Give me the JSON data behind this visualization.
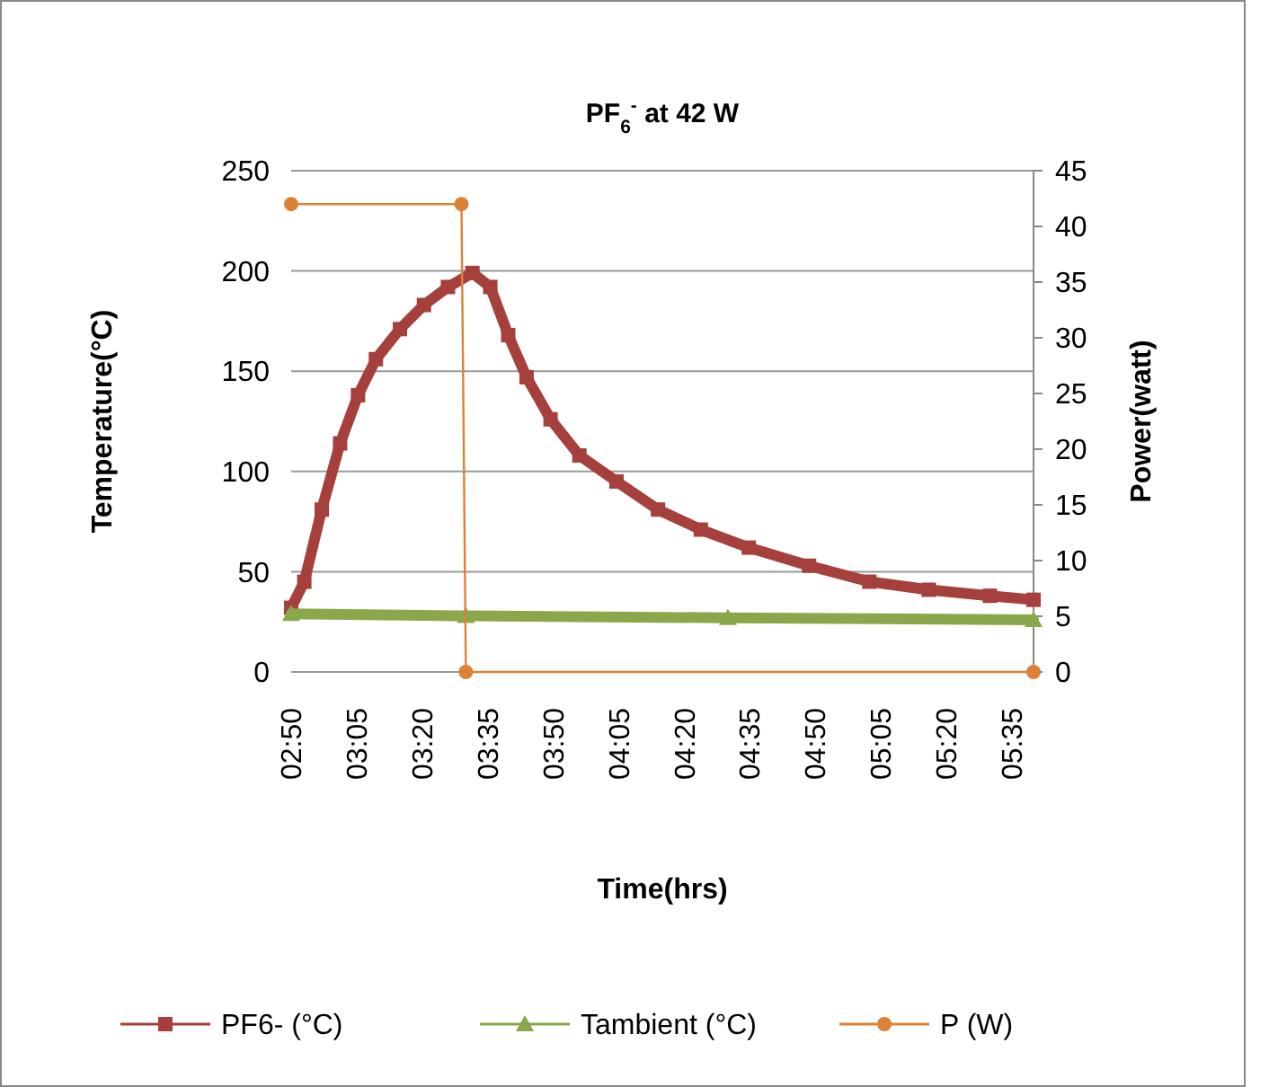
{
  "chart_data": {
    "type": "line",
    "title": "PF$_{6}$$^{-}$ at 42 W",
    "xlabel": "Time(hrs)",
    "ylabel": "Temperature(°C)",
    "y2label": "Power(watt)",
    "xlim": [
      2.8333,
      5.6667
    ],
    "xticks": [
      {
        "value": 2.8333,
        "label": "02:50"
      },
      {
        "value": 3.0833,
        "label": "03:05"
      },
      {
        "value": 3.3333,
        "label": "03:20"
      },
      {
        "value": 3.5833,
        "label": "03:35"
      },
      {
        "value": 3.8333,
        "label": "03:50"
      },
      {
        "value": 4.0833,
        "label": "04:05"
      },
      {
        "value": 4.3333,
        "label": "04:20"
      },
      {
        "value": 4.5833,
        "label": "04:35"
      },
      {
        "value": 4.8333,
        "label": "04:50"
      },
      {
        "value": 5.0833,
        "label": "05:05"
      },
      {
        "value": 5.3333,
        "label": "05:20"
      },
      {
        "value": 5.5833,
        "label": "05:35"
      }
    ],
    "ylim": [
      0,
      250
    ],
    "yticks": [
      0,
      50,
      100,
      150,
      200,
      250
    ],
    "y2lim": [
      0,
      45
    ],
    "y2ticks": [
      0,
      5,
      10,
      15,
      20,
      25,
      30,
      35,
      40,
      45
    ],
    "grid": "y",
    "legend": "bottom",
    "series": [
      {
        "name": "PF6- (°C)",
        "color": "#a5403d",
        "marker": "square",
        "x": [
          2.8333,
          2.8833,
          2.95,
          3.02,
          3.0883,
          3.1567,
          3.2483,
          3.34,
          3.4317,
          3.525,
          3.5933,
          3.6617,
          3.7317,
          3.8233,
          3.9333,
          4.075,
          4.2333,
          4.3967,
          4.58,
          4.81,
          5.04,
          5.2667,
          5.5,
          5.6667
        ],
        "values": [
          32,
          45,
          81,
          114,
          138,
          156,
          171,
          183,
          192,
          199,
          192,
          168,
          147,
          126,
          108,
          95,
          81,
          71,
          62,
          53,
          45,
          41,
          38,
          36
        ]
      },
      {
        "name": "Tambient (°C)",
        "color": "#8aa84b",
        "marker": "triangle",
        "x": [
          2.8333,
          3.5,
          4.5,
          5.6667
        ],
        "values": [
          29,
          28,
          27,
          26
        ]
      },
      {
        "name": "P (W)",
        "color": "#dd8137",
        "marker": "circle",
        "axis": "y2",
        "x": [
          2.8333,
          3.4833,
          3.5,
          5.6667
        ],
        "values": [
          42,
          42,
          0,
          0
        ]
      }
    ]
  }
}
